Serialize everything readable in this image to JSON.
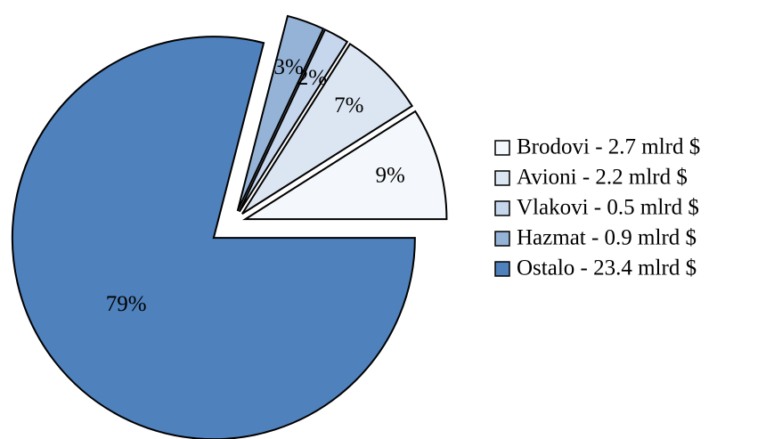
{
  "chart_data": {
    "type": "pie",
    "categories": [
      "Brodovi - 2.7 mlrd $",
      "Avioni - 2.2 mlrd $",
      "Vlakovi - 0.5 mlrd $",
      "Hazmat - 0.9 mlrd $",
      "Ostalo - 23.4 mlrd $"
    ],
    "values": [
      9,
      7,
      2,
      3,
      79
    ],
    "value_labels": [
      "9%",
      "7%",
      "2%",
      "3%",
      "79%"
    ],
    "colors": [
      "#f4f7fb",
      "#dce6f2",
      "#c6d6ec",
      "#95b3d7",
      "#4f81bd"
    ],
    "legend": "right"
  }
}
